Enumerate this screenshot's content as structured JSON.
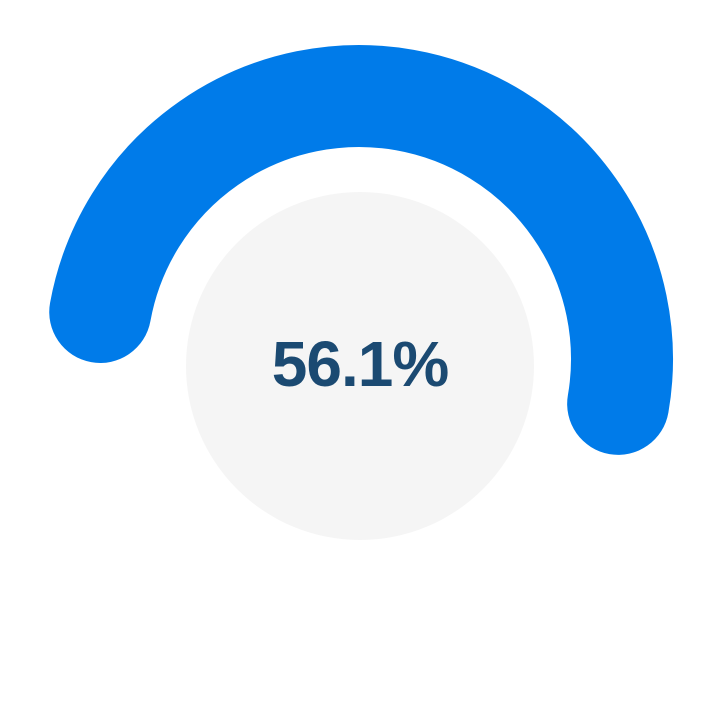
{
  "chart_data": {
    "type": "gauge",
    "value": 56.1,
    "max": 100,
    "label": "56.1%",
    "colors": {
      "arc": "#007be9",
      "inner": "#f5f5f5",
      "text": "#1b4a72"
    }
  }
}
